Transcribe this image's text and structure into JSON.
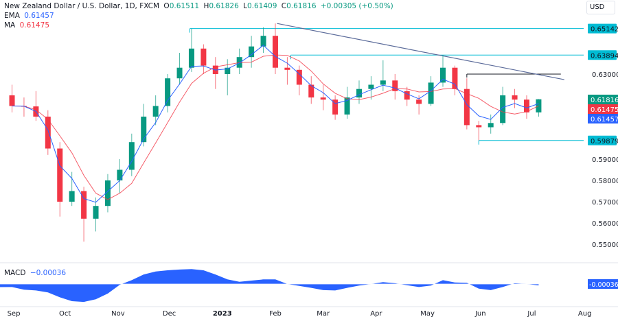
{
  "header": {
    "title": "New Zealand Dollar / U.S. Dollar, 1D, FXCM",
    "open": "0.61511",
    "high": "0.61826",
    "low": "0.61409",
    "close": "0.61816",
    "change": "+0.00305 (+0.50%)",
    "ema_label": "EMA",
    "ema_value": "0.61457",
    "ma_label": "MA",
    "ma_value": "0.61475",
    "macd_label": "MACD",
    "macd_value": "−0.00036",
    "currency": "USD"
  },
  "colors": {
    "up": "#089981",
    "down": "#f23645",
    "ema": "#2962ff",
    "ma": "#f23645",
    "level": "#00bcd4",
    "trend": "#5b6b9a",
    "macd": "#2962ff"
  },
  "chart_data": {
    "type": "candlestick",
    "interval_shown": "weekly approximation of daily candles",
    "ylim": [
      0.545,
      0.658
    ],
    "y_ticks": [
      "0.63000",
      "0.59000",
      "0.58000",
      "0.57000",
      "0.56000",
      "0.55000"
    ],
    "x_ticks": [
      {
        "label": "Sep",
        "date": "2022-09-01"
      },
      {
        "label": "Oct",
        "date": "2022-10-01"
      },
      {
        "label": "Nov",
        "date": "2022-11-01"
      },
      {
        "label": "Dec",
        "date": "2022-12-01"
      },
      {
        "label": "2023",
        "date": "2023-01-01",
        "bold": true
      },
      {
        "label": "Feb",
        "date": "2023-02-01"
      },
      {
        "label": "Mar",
        "date": "2023-03-01"
      },
      {
        "label": "Apr",
        "date": "2023-04-01"
      },
      {
        "label": "May",
        "date": "2023-05-01"
      },
      {
        "label": "Jun",
        "date": "2023-06-01"
      },
      {
        "label": "Jul",
        "date": "2023-07-01"
      },
      {
        "label": "Aug",
        "date": "2023-08-01"
      }
    ],
    "start_week": "2022-08-29",
    "ohlc": [
      [
        0.62,
        0.625,
        0.612,
        0.615
      ],
      [
        0.615,
        0.619,
        0.61,
        0.6148
      ],
      [
        0.6148,
        0.622,
        0.608,
        0.61
      ],
      [
        0.61,
        0.613,
        0.592,
        0.595
      ],
      [
        0.595,
        0.598,
        0.563,
        0.57
      ],
      [
        0.57,
        0.584,
        0.568,
        0.575
      ],
      [
        0.575,
        0.577,
        0.5512,
        0.562
      ],
      [
        0.562,
        0.572,
        0.556,
        0.568
      ],
      [
        0.568,
        0.583,
        0.565,
        0.58
      ],
      [
        0.58,
        0.59,
        0.574,
        0.585
      ],
      [
        0.585,
        0.602,
        0.582,
        0.598
      ],
      [
        0.598,
        0.616,
        0.596,
        0.61
      ],
      [
        0.61,
        0.62,
        0.606,
        0.615
      ],
      [
        0.615,
        0.63,
        0.612,
        0.628
      ],
      [
        0.628,
        0.64,
        0.625,
        0.633
      ],
      [
        0.633,
        0.6514,
        0.631,
        0.642
      ],
      [
        0.642,
        0.644,
        0.63,
        0.634
      ],
      [
        0.634,
        0.638,
        0.623,
        0.63
      ],
      [
        0.63,
        0.637,
        0.62,
        0.633
      ],
      [
        0.633,
        0.642,
        0.63,
        0.638
      ],
      [
        0.638,
        0.648,
        0.633,
        0.643
      ],
      [
        0.643,
        0.652,
        0.64,
        0.648
      ],
      [
        0.648,
        0.6538,
        0.63,
        0.633
      ],
      [
        0.633,
        0.638,
        0.625,
        0.632
      ],
      [
        0.632,
        0.634,
        0.62,
        0.625
      ],
      [
        0.625,
        0.629,
        0.616,
        0.619
      ],
      [
        0.619,
        0.625,
        0.613,
        0.618
      ],
      [
        0.618,
        0.62,
        0.6085,
        0.611
      ],
      [
        0.611,
        0.624,
        0.609,
        0.619
      ],
      [
        0.619,
        0.627,
        0.616,
        0.623
      ],
      [
        0.623,
        0.629,
        0.618,
        0.625
      ],
      [
        0.625,
        0.6365,
        0.622,
        0.627
      ],
      [
        0.627,
        0.63,
        0.618,
        0.622
      ],
      [
        0.622,
        0.624,
        0.615,
        0.618
      ],
      [
        0.618,
        0.62,
        0.611,
        0.616
      ],
      [
        0.616,
        0.629,
        0.615,
        0.626
      ],
      [
        0.626,
        0.6389,
        0.624,
        0.633
      ],
      [
        0.633,
        0.634,
        0.62,
        0.623
      ],
      [
        0.623,
        0.628,
        0.604,
        0.606
      ],
      [
        0.606,
        0.608,
        0.5988,
        0.605
      ],
      [
        0.605,
        0.611,
        0.602,
        0.607
      ],
      [
        0.607,
        0.624,
        0.606,
        0.62
      ],
      [
        0.62,
        0.623,
        0.614,
        0.618
      ],
      [
        0.618,
        0.62,
        0.609,
        0.612
      ],
      [
        0.612,
        0.61826,
        0.61,
        0.61816
      ]
    ],
    "macd": [
      -0.0008,
      -0.0015,
      -0.0017,
      -0.0022,
      -0.0035,
      -0.0045,
      -0.0047,
      -0.004,
      -0.0025,
      -0.0002,
      0.001,
      0.0025,
      0.0033,
      0.0036,
      0.0038,
      0.0039,
      0.0036,
      0.0025,
      0.0012,
      0.0006,
      0.0009,
      0.0012,
      0.0012,
      0.0,
      -0.0005,
      -0.001,
      -0.0016,
      -0.0017,
      -0.001,
      -0.0004,
      0.0,
      0.0005,
      0.0002,
      -0.0003,
      -0.0008,
      -0.0004,
      0.001,
      0.0004,
      0.0003,
      -0.0012,
      -0.0016,
      -0.0008,
      0.0002,
      0.0,
      -0.00036
    ],
    "levels": [
      {
        "price": 0.65142,
        "label": "0.65142",
        "from": "2022-12-13"
      },
      {
        "price": 0.63894,
        "label": "0.63894",
        "from": "2023-02-10"
      },
      {
        "price": 0.59879,
        "label": "0.59879",
        "from": "2023-05-31"
      }
    ],
    "resistance": {
      "price": 0.63,
      "from": "2023-05-24",
      "to": "2023-07-18"
    },
    "trendline": {
      "from": [
        "2023-02-02",
        0.6538
      ],
      "to": [
        "2023-07-20",
        0.6274
      ]
    },
    "price_tags": [
      {
        "label": "0.61816",
        "price": 0.61816,
        "color": "#089981"
      },
      {
        "label": "0.61475",
        "price": 0.61475,
        "color": "#f23645"
      },
      {
        "label": "0.61457",
        "price": 0.61457,
        "color": "#2962ff"
      }
    ],
    "macd_tag": "-0.00036"
  }
}
